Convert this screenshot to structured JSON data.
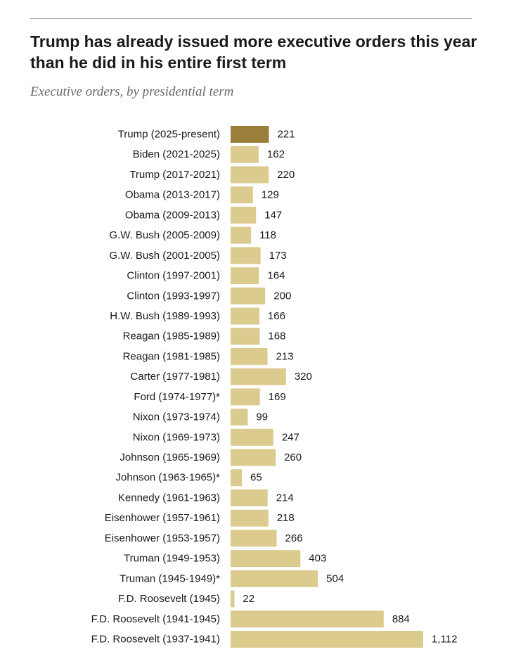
{
  "title": "Trump has already issued more executive orders this year than he did in his entire first term",
  "subtitle": "Executive orders, by presidential term",
  "colors": {
    "highlight": "#9a7e3a",
    "bar": "#dccb8e",
    "label": "#1a1a1a",
    "value": "#1a1a1a"
  },
  "chart_data": {
    "type": "bar",
    "orientation": "horizontal",
    "title": "Trump has already issued more executive orders this year than he did in his entire first term",
    "subtitle": "Executive orders, by presidential term",
    "xlabel": "",
    "ylabel": "",
    "xlim": [
      0,
      1112
    ],
    "grid": false,
    "legend": "none",
    "highlight_index": 0,
    "categories": [
      "Trump (2025-present)",
      "Biden (2021-2025)",
      "Trump (2017-2021)",
      "Obama (2013-2017)",
      "Obama (2009-2013)",
      "G.W. Bush (2005-2009)",
      "G.W. Bush (2001-2005)",
      "Clinton (1997-2001)",
      "Clinton (1993-1997)",
      "H.W. Bush (1989-1993)",
      "Reagan (1985-1989)",
      "Reagan (1981-1985)",
      "Carter (1977-1981)",
      "Ford (1974-1977)*",
      "Nixon (1973-1974)",
      "Nixon (1969-1973)",
      "Johnson (1965-1969)",
      "Johnson (1963-1965)*",
      "Kennedy (1961-1963)",
      "Eisenhower (1957-1961)",
      "Eisenhower (1953-1957)",
      "Truman (1949-1953)",
      "Truman (1945-1949)*",
      "F.D. Roosevelt (1945)",
      "F.D. Roosevelt (1941-1945)",
      "F.D. Roosevelt (1937-1941)"
    ],
    "values": [
      221,
      162,
      220,
      129,
      147,
      118,
      173,
      164,
      200,
      166,
      168,
      213,
      320,
      169,
      99,
      247,
      260,
      65,
      214,
      218,
      266,
      403,
      504,
      22,
      884,
      1112
    ],
    "value_labels": [
      "221",
      "162",
      "220",
      "129",
      "147",
      "118",
      "173",
      "164",
      "200",
      "166",
      "168",
      "213",
      "320",
      "169",
      "99",
      "247",
      "260",
      "65",
      "214",
      "218",
      "266",
      "403",
      "504",
      "22",
      "884",
      "1,112"
    ]
  }
}
